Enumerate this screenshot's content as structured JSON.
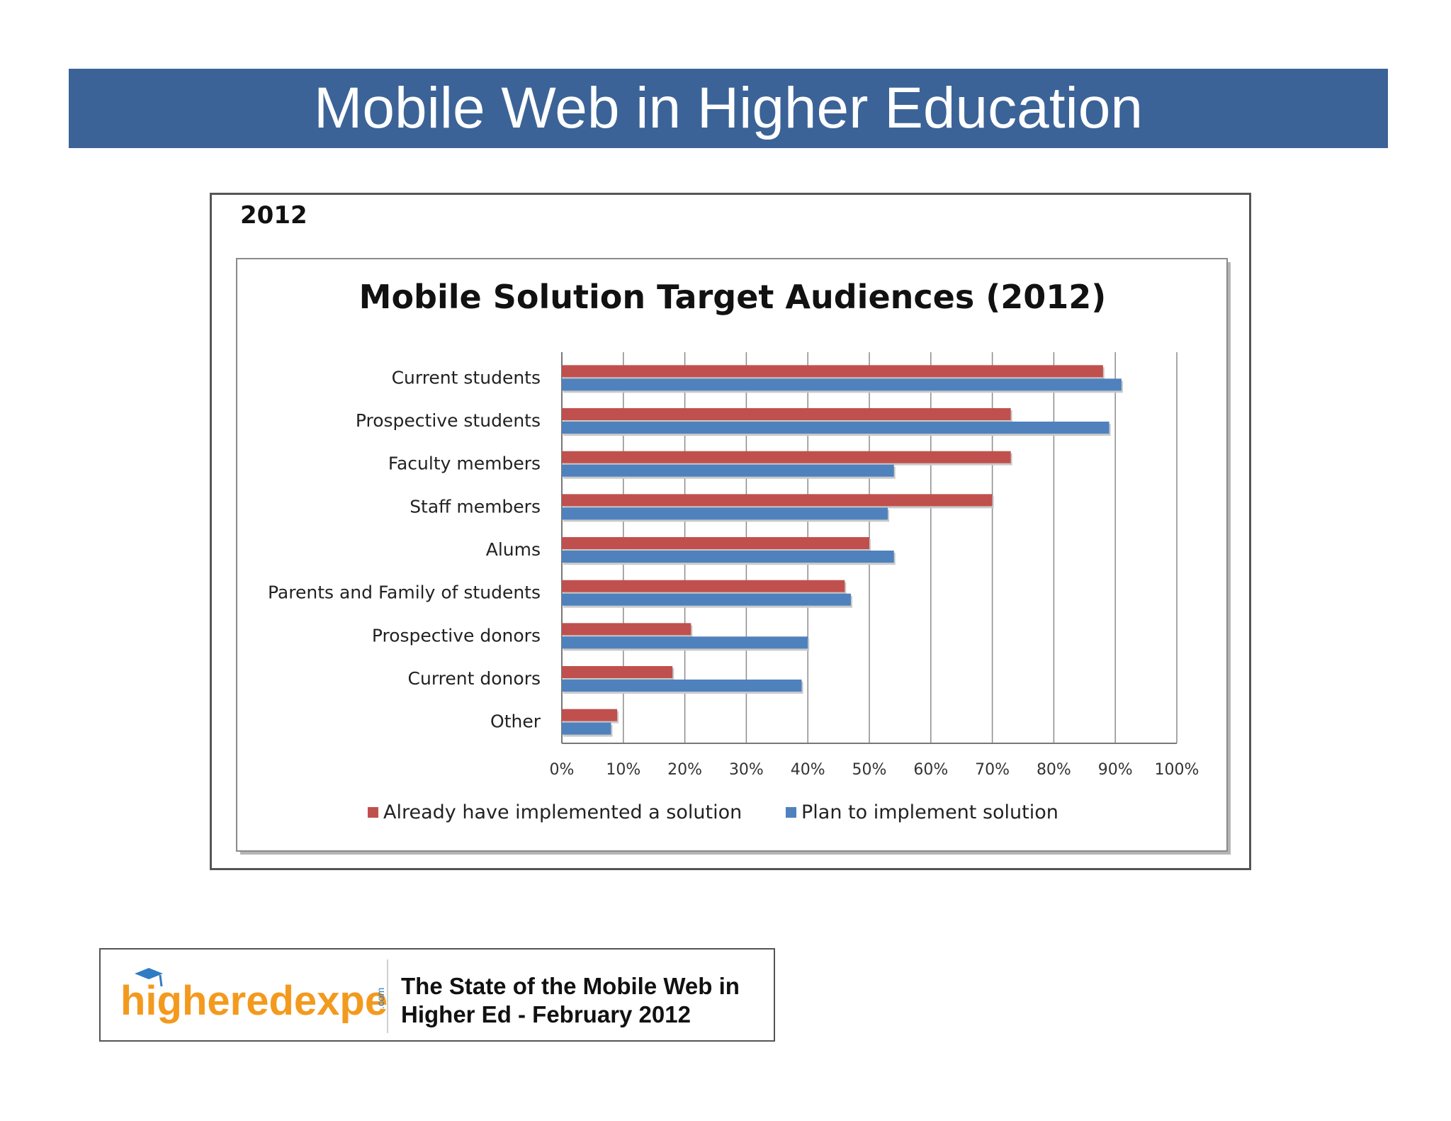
{
  "slide": {
    "title": "Mobile Web in Higher Education"
  },
  "panel": {
    "year_label": "2012"
  },
  "source": {
    "logo_text_main": "higheredexperts",
    "logo_text_suffix": ".com",
    "citation_line1": "The State of the Mobile Web in",
    "citation_line2": "Higher Ed - February 2012"
  },
  "colors": {
    "banner": "#3b6397",
    "series_implemented": "#c0504d",
    "series_plan": "#4f81bd",
    "logo_orange": "#f39a1e",
    "logo_blue": "#2f7cc2"
  },
  "chart_data": {
    "type": "bar",
    "orientation": "horizontal",
    "title": "Mobile Solution Target Audiences (2012)",
    "categories": [
      "Current students",
      "Prospective students",
      "Faculty members",
      "Staff members",
      "Alums",
      "Parents and Family of students",
      "Prospective donors",
      "Current donors",
      "Other"
    ],
    "series": [
      {
        "name": "Already have implemented a solution",
        "color": "#c0504d",
        "values": [
          88,
          73,
          73,
          70,
          50,
          46,
          21,
          18,
          9
        ]
      },
      {
        "name": "Plan to implement solution",
        "color": "#4f81bd",
        "values": [
          91,
          89,
          54,
          53,
          54,
          47,
          40,
          39,
          8
        ]
      }
    ],
    "xlim": [
      0,
      100
    ],
    "xticks": [
      "0%",
      "10%",
      "20%",
      "30%",
      "40%",
      "50%",
      "60%",
      "70%",
      "80%",
      "90%",
      "100%"
    ],
    "grid": true,
    "legend_position": "bottom"
  }
}
